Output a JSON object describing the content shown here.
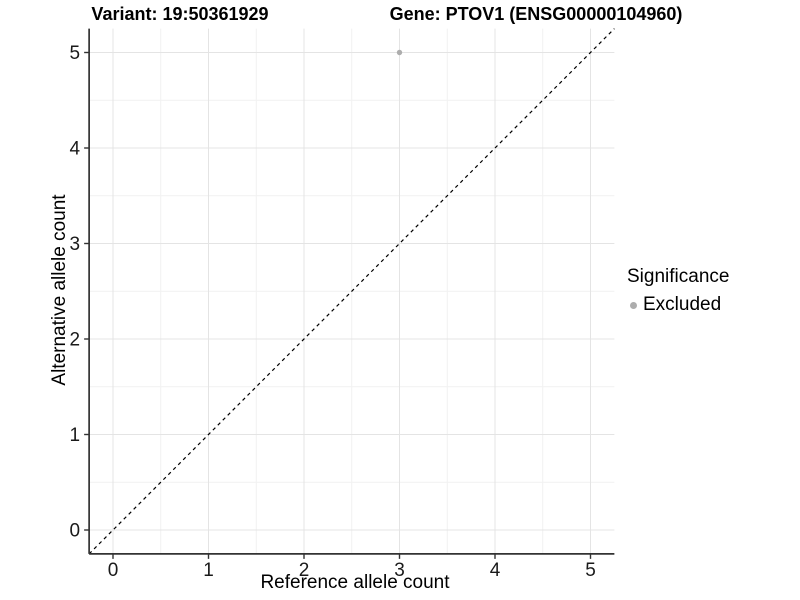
{
  "figure": {
    "variant_title": "Variant: 19:50361929",
    "gene_title": "Gene: PTOV1 (ENSG00000104960)"
  },
  "axes": {
    "x_label": "Reference allele count",
    "y_label": "Alternative allele count"
  },
  "legend": {
    "title": "Significance",
    "items": [
      {
        "label": "Excluded",
        "color": "#adadad"
      }
    ]
  },
  "chart_data": {
    "type": "scatter",
    "title": "Variant: 19:50361929 | Gene: PTOV1 (ENSG00000104960)",
    "xlabel": "Reference allele count",
    "ylabel": "Alternative allele count",
    "xlim": [
      -0.25,
      5.25
    ],
    "ylim": [
      -0.25,
      5.25
    ],
    "x_ticks": [
      0,
      1,
      2,
      3,
      4,
      5
    ],
    "y_ticks": [
      0,
      1,
      2,
      3,
      4,
      5
    ],
    "x_minor_ticks": [
      0.5,
      1.5,
      2.5,
      3.5,
      4.5
    ],
    "y_minor_ticks": [
      0.5,
      1.5,
      2.5,
      3.5,
      4.5
    ],
    "grid": "major+minor",
    "legend_position": "right",
    "series": [
      {
        "name": "Excluded",
        "color": "#adadad",
        "marker": "circle",
        "points": [
          {
            "x": 3,
            "y": 5
          }
        ]
      }
    ],
    "reference_line": {
      "type": "identity",
      "equation": "y = x",
      "style": "dashed",
      "color": "#000000",
      "from": [
        -0.25,
        -0.25
      ],
      "to": [
        5.25,
        5.25
      ]
    }
  },
  "colors": {
    "background": "#ffffff",
    "grid_major": "#e4e4e4",
    "grid_minor": "#f1f1f1",
    "axis_line": "#333333",
    "tick_text": "#1a1a1a",
    "text": "#000000",
    "excluded_point": "#adadad"
  }
}
